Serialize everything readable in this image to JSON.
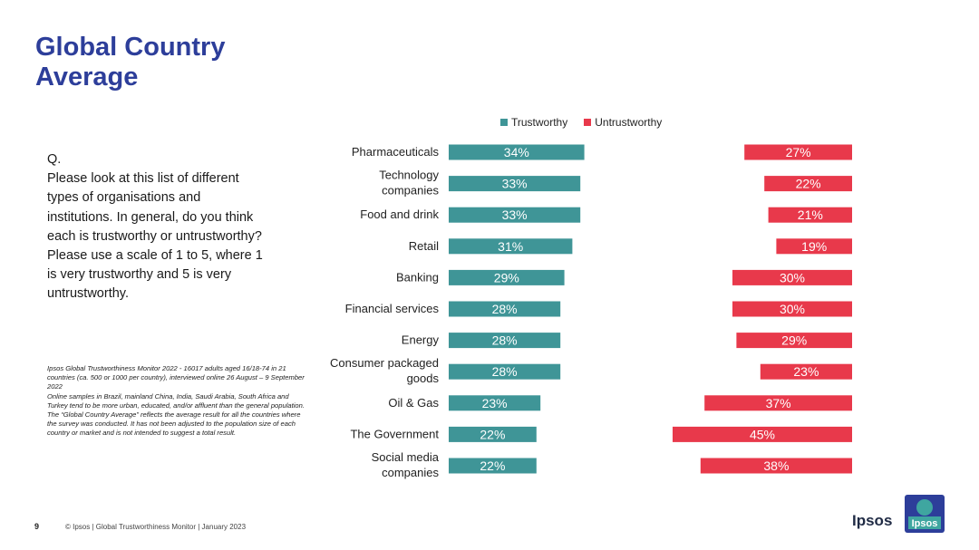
{
  "header": {
    "title": "Global Country Average"
  },
  "question": {
    "label": "Q.",
    "text": "Please look at this list of different types of organisations and institutions. In general, do you think each is trustworthy or untrustworthy? Please use a scale of 1 to 5, where 1 is very trustworthy and 5 is very untrustworthy."
  },
  "notes": {
    "line1": "Ipsos Global Trustworthiness Monitor 2022 - 16017 adults aged 16/18-74 in 21 countries (ca. 500 or 1000 per country), interviewed online 26 August – 9 September 2022",
    "line2": "Online samples in Brazil, mainland China, India, Saudi Arabia, South Africa and Turkey tend to be more urban, educated, and/or affluent than the general population.",
    "line3": "The “Global Country Average” reflects the average result for all the countries where the survey was conducted. It has not been adjusted to the population size of each country or market and is not intended to suggest a total result."
  },
  "footer": {
    "page": "9",
    "text": "© Ipsos | Global Trustworthiness Monitor | January 2023"
  },
  "logo": {
    "wordmark": "Ipsos",
    "badge": "Ipsos"
  },
  "colors": {
    "title": "#2d3e9a",
    "trustworthy": "#3f9597",
    "untrustworthy": "#e8394b"
  },
  "chart_data": {
    "type": "bar",
    "orientation": "horizontal",
    "legend_position": "top",
    "categories": [
      "Pharmaceuticals",
      "Technology companies",
      "Food and drink",
      "Retail",
      "Banking",
      "Financial services",
      "Energy",
      "Consumer packaged goods",
      "Oil & Gas",
      "The Government",
      "Social media companies"
    ],
    "series": [
      {
        "name": "Trustworthy",
        "values": [
          34,
          33,
          33,
          31,
          29,
          28,
          28,
          28,
          23,
          22,
          22
        ],
        "labels": [
          "34%",
          "33%",
          "33%",
          "31%",
          "29%",
          "28%",
          "28%",
          "28%",
          "23%",
          "22%",
          "22%"
        ]
      },
      {
        "name": "Untrustworthy",
        "values": [
          27,
          22,
          21,
          19,
          30,
          30,
          29,
          23,
          37,
          45,
          38
        ],
        "labels": [
          "27%",
          "22%",
          "21%",
          "19%",
          "30%",
          "30%",
          "29%",
          "23%",
          "37%",
          "45%",
          "38%"
        ]
      }
    ]
  }
}
